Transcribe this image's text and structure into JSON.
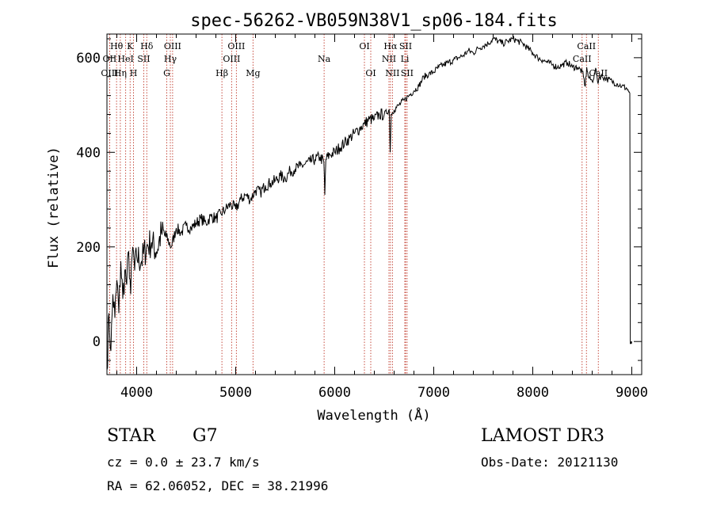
{
  "chart_data": {
    "type": "line",
    "title": "spec-56262-VB059N38V1_sp06-184.fits",
    "xlabel": "Wavelength (Å)",
    "ylabel": "Flux (relative)",
    "xlim": [
      3700,
      9100
    ],
    "ylim": [
      -70,
      650
    ],
    "xticks": [
      4000,
      5000,
      6000,
      7000,
      8000,
      9000
    ],
    "yticks": [
      0,
      200,
      400,
      600
    ],
    "xtick_labels": [
      "4000",
      "5000",
      "6000",
      "7000",
      "8000",
      "9000"
    ],
    "ytick_labels": [
      "0",
      "200",
      "400",
      "600"
    ],
    "xminor_step": 200,
    "yminor_step": 40,
    "grid": false,
    "series": [
      {
        "name": "flux",
        "x": [
          3700,
          3720,
          3740,
          3760,
          3780,
          3800,
          3820,
          3840,
          3860,
          3880,
          3900,
          3920,
          3940,
          3960,
          3980,
          4000,
          4050,
          4100,
          4150,
          4200,
          4250,
          4300,
          4350,
          4400,
          4450,
          4500,
          4550,
          4600,
          4650,
          4700,
          4750,
          4800,
          4850,
          4900,
          4950,
          5000,
          5050,
          5100,
          5150,
          5200,
          5250,
          5300,
          5350,
          5400,
          5450,
          5500,
          5550,
          5600,
          5650,
          5700,
          5750,
          5800,
          5850,
          5890,
          5900,
          5910,
          5950,
          6000,
          6050,
          6100,
          6150,
          6200,
          6250,
          6300,
          6350,
          6400,
          6450,
          6500,
          6550,
          6560,
          6570,
          6600,
          6650,
          6700,
          6750,
          6800,
          6850,
          6900,
          6950,
          7000,
          7050,
          7100,
          7150,
          7200,
          7250,
          7300,
          7350,
          7400,
          7450,
          7500,
          7550,
          7600,
          7650,
          7700,
          7750,
          7800,
          7850,
          7900,
          7950,
          8000,
          8050,
          8100,
          8150,
          8200,
          8250,
          8300,
          8350,
          8400,
          8450,
          8500,
          8530,
          8545,
          8560,
          8600,
          8640,
          8660,
          8670,
          8700,
          8750,
          8800,
          8850,
          8900,
          8950,
          8980,
          8985,
          8990,
          8995,
          9000
        ],
        "y": [
          -60,
          60,
          -20,
          100,
          50,
          130,
          60,
          170,
          90,
          150,
          120,
          190,
          100,
          200,
          150,
          180,
          170,
          200,
          210,
          190,
          230,
          220,
          200,
          240,
          230,
          245,
          240,
          250,
          260,
          250,
          265,
          260,
          270,
          280,
          290,
          280,
          300,
          310,
          300,
          320,
          315,
          330,
          335,
          340,
          350,
          345,
          360,
          365,
          370,
          375,
          380,
          385,
          390,
          380,
          310,
          385,
          395,
          400,
          410,
          420,
          430,
          440,
          450,
          460,
          470,
          470,
          480,
          480,
          490,
          400,
          480,
          490,
          500,
          510,
          520,
          530,
          540,
          560,
          565,
          570,
          580,
          585,
          590,
          595,
          600,
          605,
          615,
          610,
          620,
          625,
          630,
          640,
          635,
          630,
          635,
          640,
          635,
          630,
          620,
          610,
          600,
          595,
          590,
          585,
          580,
          585,
          590,
          580,
          580,
          570,
          540,
          580,
          560,
          550,
          575,
          545,
          560,
          560,
          555,
          550,
          545,
          540,
          535,
          525,
          -5,
          0,
          -5,
          0
        ]
      }
    ],
    "lines": [
      {
        "name": "Hθ",
        "wl": 3797,
        "row": 1
      },
      {
        "name": "OII",
        "wl": 3727,
        "row": 2
      },
      {
        "name": "OIII",
        "wl": 3727,
        "row": 3
      },
      {
        "name": "K",
        "wl": 3934,
        "row": 1
      },
      {
        "name": "HeI",
        "wl": 3889,
        "row": 2
      },
      {
        "name": "Hη",
        "wl": 3835,
        "row": 3
      },
      {
        "name": "Hδ",
        "wl": 4102,
        "row": 1
      },
      {
        "name": "SII",
        "wl": 4072,
        "row": 2
      },
      {
        "name": "H",
        "wl": 3968,
        "row": 3
      },
      {
        "name": "OIII",
        "wl": 4363,
        "row": 1
      },
      {
        "name": "Hγ",
        "wl": 4340,
        "row": 2
      },
      {
        "name": "G",
        "wl": 4304,
        "row": 3
      },
      {
        "name": "OIII",
        "wl": 5007,
        "row": 1
      },
      {
        "name": "OIII",
        "wl": 4959,
        "row": 2
      },
      {
        "name": "Hβ",
        "wl": 4861,
        "row": 3
      },
      {
        "name": "Mg",
        "wl": 5175,
        "row": 3
      },
      {
        "name": "Na",
        "wl": 5893,
        "row": 2
      },
      {
        "name": "OI",
        "wl": 6300,
        "row": 1
      },
      {
        "name": "OI",
        "wl": 6364,
        "row": 3
      },
      {
        "name": "Hα",
        "wl": 6563,
        "row": 1
      },
      {
        "name": "NII",
        "wl": 6548,
        "row": 2
      },
      {
        "name": "NII",
        "wl": 6583,
        "row": 3
      },
      {
        "name": "SII",
        "wl": 6716,
        "row": 1
      },
      {
        "name": "Li",
        "wl": 6708,
        "row": 2
      },
      {
        "name": "SII",
        "wl": 6731,
        "row": 3
      },
      {
        "name": "CaII",
        "wl": 8542,
        "row": 1
      },
      {
        "name": "CaII",
        "wl": 8498,
        "row": 2
      },
      {
        "name": "CaII",
        "wl": 8662,
        "row": 3
      }
    ]
  },
  "info": {
    "object_class": "STAR",
    "subclass": "G7",
    "cz": "cz = 0.0 ± 23.7 km/s",
    "coords": "RA =  62.06052, DEC =  38.21996",
    "survey": "LAMOST DR3",
    "obs_date": "Obs-Date: 20121130"
  },
  "colors": {
    "line_marker": "#c0392b",
    "spectrum": "#000000",
    "axes": "#000000"
  }
}
